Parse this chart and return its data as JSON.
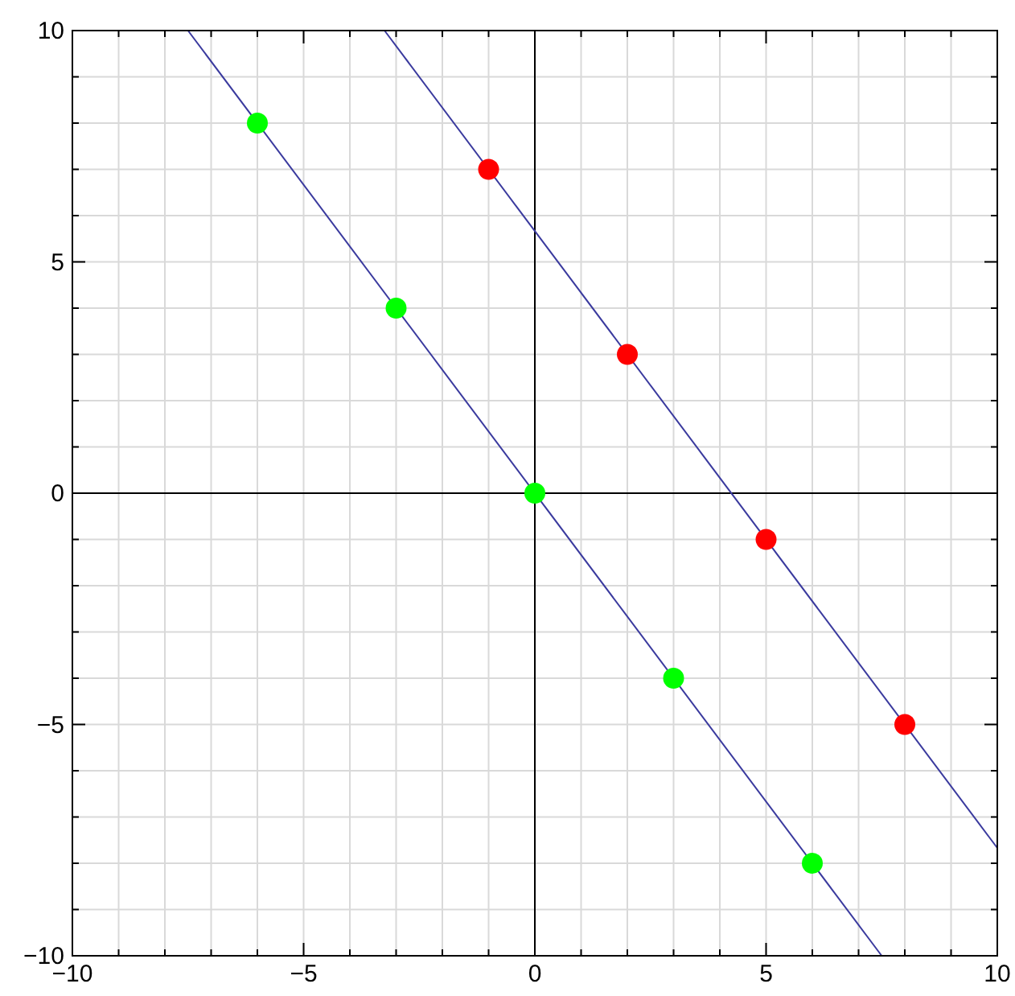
{
  "chart_data": {
    "type": "scatter",
    "xlim": [
      -10,
      10
    ],
    "ylim": [
      -10,
      10
    ],
    "xticks": [
      -10,
      {
        "value": -9,
        "label": null
      },
      {
        "value": -8,
        "label": null
      },
      {
        "value": -7,
        "label": null
      },
      {
        "value": -6,
        "label": null
      },
      -5,
      {
        "value": -4,
        "label": null
      },
      {
        "value": -3,
        "label": null
      },
      {
        "value": -2,
        "label": null
      },
      {
        "value": -1,
        "label": null
      },
      0,
      {
        "value": 1,
        "label": null
      },
      {
        "value": 2,
        "label": null
      },
      {
        "value": 3,
        "label": null
      },
      {
        "value": 4,
        "label": null
      },
      5,
      {
        "value": 6,
        "label": null
      },
      {
        "value": 7,
        "label": null
      },
      {
        "value": 8,
        "label": null
      },
      {
        "value": 9,
        "label": null
      },
      10
    ],
    "yticks": [
      -10,
      {
        "value": -9,
        "label": null
      },
      {
        "value": -8,
        "label": null
      },
      {
        "value": -7,
        "label": null
      },
      {
        "value": -6,
        "label": null
      },
      -5,
      {
        "value": -4,
        "label": null
      },
      {
        "value": -3,
        "label": null
      },
      {
        "value": -2,
        "label": null
      },
      {
        "value": -1,
        "label": null
      },
      0,
      {
        "value": 1,
        "label": null
      },
      {
        "value": 2,
        "label": null
      },
      {
        "value": 3,
        "label": null
      },
      {
        "value": 4,
        "label": null
      },
      5,
      {
        "value": 6,
        "label": null
      },
      {
        "value": 7,
        "label": null
      },
      {
        "value": 8,
        "label": null
      },
      {
        "value": 9,
        "label": null
      },
      10
    ],
    "grid": true,
    "marker": "circle",
    "series": [
      {
        "type": "line",
        "color": "#3a3a9e",
        "x": [
          -7.5,
          7.5
        ],
        "values": [
          10,
          -10
        ],
        "marker": "none"
      },
      {
        "type": "line",
        "color": "#3a3a9e",
        "x": [
          -3.25,
          10
        ],
        "values": [
          10,
          -7.67
        ],
        "marker": "none"
      },
      {
        "color": "#00ff00",
        "x": [
          -6,
          -3,
          0,
          3,
          6
        ],
        "values": [
          8,
          4,
          0,
          -4,
          -8
        ]
      },
      {
        "color": "#ff0000",
        "x": [
          -1,
          2,
          5,
          8
        ],
        "values": [
          7,
          3,
          -1,
          -5
        ]
      }
    ]
  }
}
